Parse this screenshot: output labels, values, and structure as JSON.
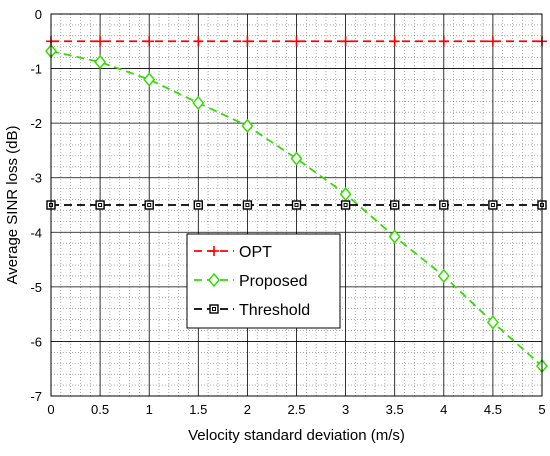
{
  "chart_data": {
    "type": "line",
    "title": "",
    "xlabel": "Velocity standard deviation (m/s)",
    "ylabel": "Average SINR loss (dB)",
    "xlim": [
      0,
      5
    ],
    "ylim": [
      -7,
      0
    ],
    "x_ticks": [
      "0",
      "0.5",
      "1",
      "1.5",
      "2",
      "2.5",
      "3",
      "3.5",
      "4",
      "4.5",
      "5"
    ],
    "y_ticks": [
      "0",
      "-1",
      "-2",
      "-3",
      "-4",
      "-5",
      "-6",
      "-7"
    ],
    "grid": "major-and-minor",
    "legend_position": "center-left",
    "x": [
      0,
      0.5,
      1,
      1.5,
      2,
      2.5,
      3,
      3.5,
      4,
      4.5,
      5
    ],
    "series": [
      {
        "name": "OPT",
        "color": "#ff0000",
        "marker": "plus",
        "values": [
          -0.5,
          -0.5,
          -0.5,
          -0.5,
          -0.5,
          -0.5,
          -0.5,
          -0.5,
          -0.5,
          -0.5,
          -0.5
        ]
      },
      {
        "name": "Proposed",
        "color": "#33dd00",
        "marker": "diamond",
        "values": [
          -0.68,
          -0.88,
          -1.2,
          -1.63,
          -2.05,
          -2.65,
          -3.3,
          -4.08,
          -4.8,
          -5.65,
          -6.45
        ]
      },
      {
        "name": "Threshold",
        "color": "#000000",
        "marker": "square",
        "values": [
          -3.5,
          -3.5,
          -3.5,
          -3.5,
          -3.5,
          -3.5,
          -3.5,
          -3.5,
          -3.5,
          -3.5,
          -3.5
        ]
      }
    ]
  }
}
